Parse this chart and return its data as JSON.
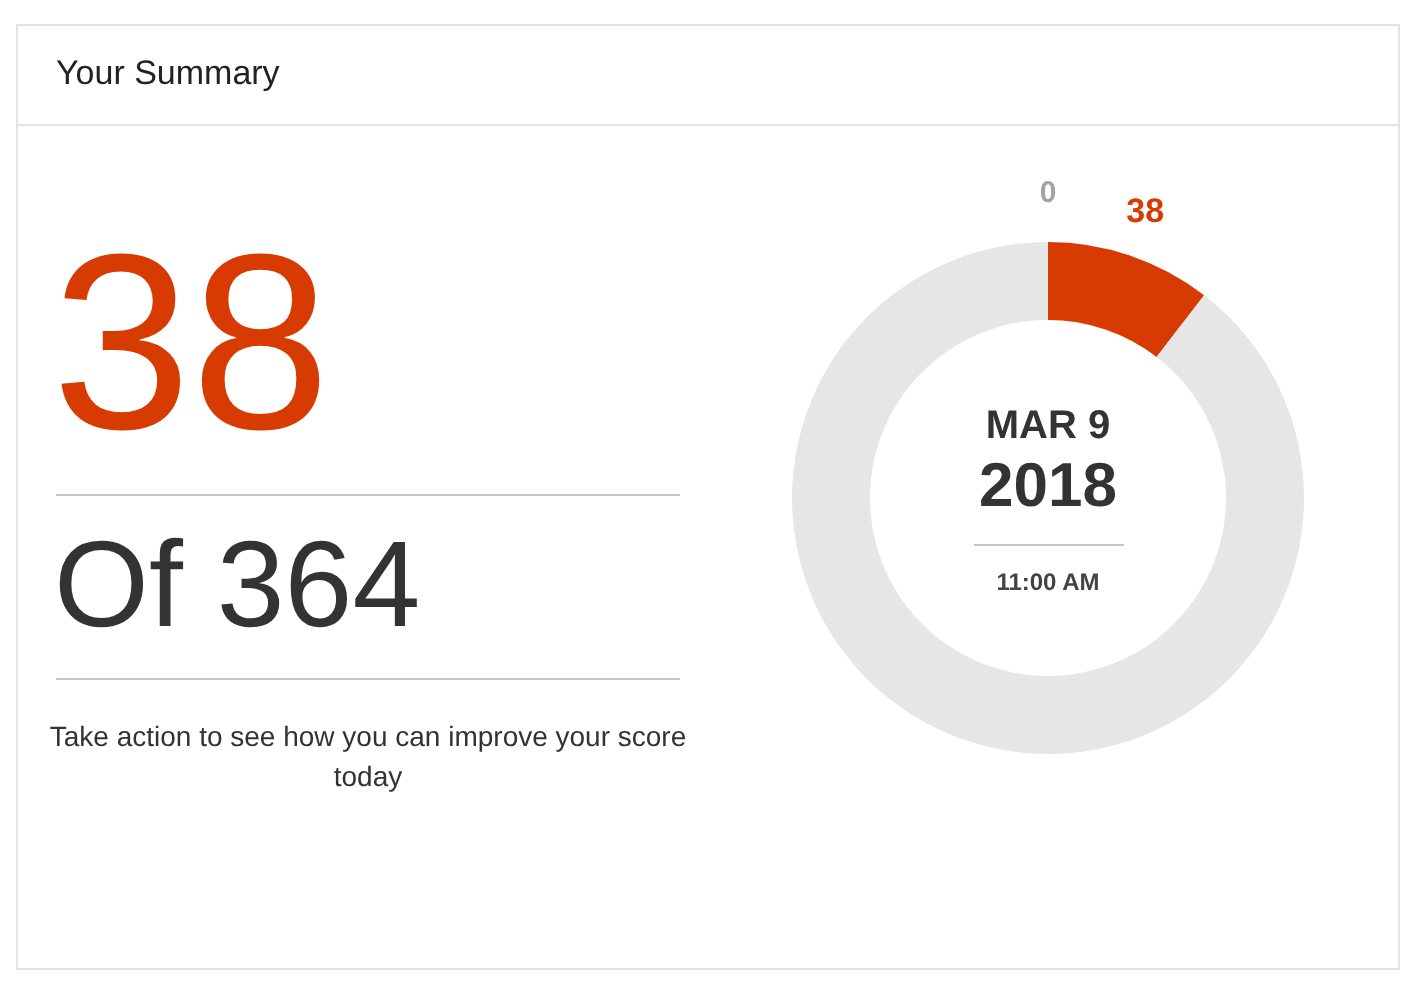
{
  "chart_data": {
    "type": "donut",
    "title": "Your Summary",
    "categories": [
      null,
      null
    ],
    "values": [
      38,
      326
    ],
    "colors": [
      "#d83b01",
      "#e6e6e6"
    ],
    "value_labels": [
      "38",
      null
    ],
    "annotations": [
      "0",
      "38",
      "Of 364",
      "Take action to see how you can improve your score today",
      "MAR 9",
      "2018",
      "11:00 AM"
    ]
  }
}
